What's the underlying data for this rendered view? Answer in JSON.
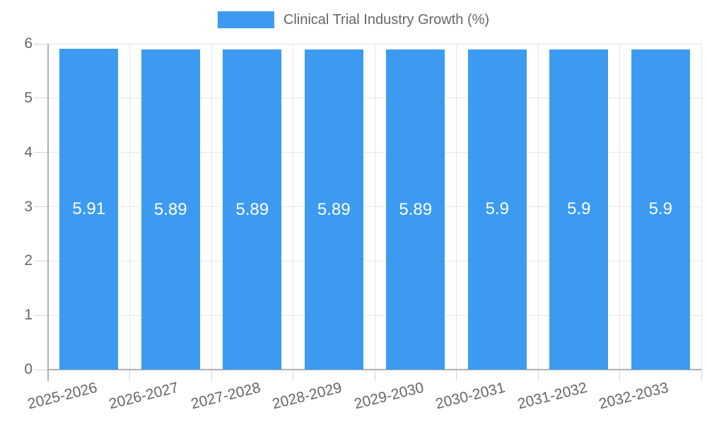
{
  "chart_data": {
    "type": "bar",
    "title": "Clinical Trial Industry Growth (%)",
    "categories": [
      "2025-2026",
      "2026-2027",
      "2027-2028",
      "2028-2029",
      "2029-2030",
      "2030-2031",
      "2031-2032",
      "2032-2033"
    ],
    "values": [
      5.91,
      5.89,
      5.89,
      5.89,
      5.89,
      5.9,
      5.9,
      5.9
    ],
    "value_labels": [
      "5.91",
      "5.89",
      "5.89",
      "5.89",
      "5.89",
      "5.9",
      "5.9",
      "5.9"
    ],
    "xlabel": "",
    "ylabel": "",
    "ylim": [
      0,
      6
    ],
    "y_ticks": [
      0,
      1,
      2,
      3,
      4,
      5,
      6
    ],
    "grid": true,
    "legend_position": "top"
  },
  "colors": {
    "bar": "#3C9BF0",
    "text": "#666666",
    "grid": "#E7E7E7",
    "tick": "#D4D4D4",
    "axis": "#B0B0B0",
    "value_label": "#FFFFFF",
    "background": "#FFFFFF"
  }
}
